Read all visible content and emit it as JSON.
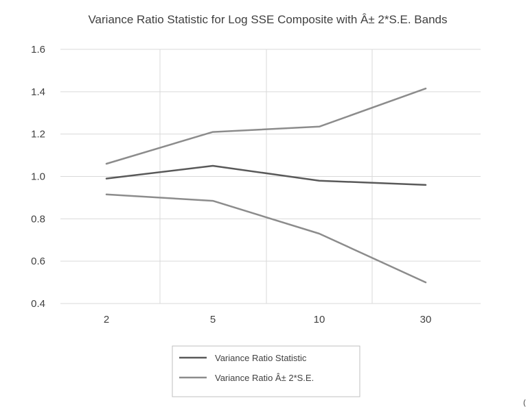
{
  "chart_data": {
    "type": "line",
    "title": "Variance Ratio Statistic for Log SSE Composite with Â± 2*S.E. Bands",
    "xlabel": "",
    "ylabel": "",
    "categories": [
      "2",
      "5",
      "10",
      "30"
    ],
    "ylim": [
      0.4,
      1.6
    ],
    "yticks": [
      "0.4",
      "0.6",
      "0.8",
      "1.0",
      "1.2",
      "1.4",
      "1.6"
    ],
    "grid": true,
    "legend_position": "bottom",
    "series": [
      {
        "name": "Variance Ratio Statistic",
        "values": [
          0.99,
          1.05,
          0.98,
          0.96
        ],
        "color": "#595959"
      },
      {
        "name": "Variance Ratio Â± 2*S.E.",
        "values": [
          1.06,
          1.21,
          1.235,
          1.415
        ],
        "color": "#8c8c8c",
        "band": "upper"
      },
      {
        "name": "",
        "values": [
          0.915,
          0.885,
          0.73,
          0.5
        ],
        "color": "#8c8c8c",
        "band": "lower"
      }
    ],
    "legend": [
      {
        "label": "Variance Ratio Statistic",
        "color": "#595959"
      },
      {
        "label": "Variance Ratio Â± 2*S.E.",
        "color": "#8c8c8c"
      }
    ]
  },
  "corner_char": "("
}
